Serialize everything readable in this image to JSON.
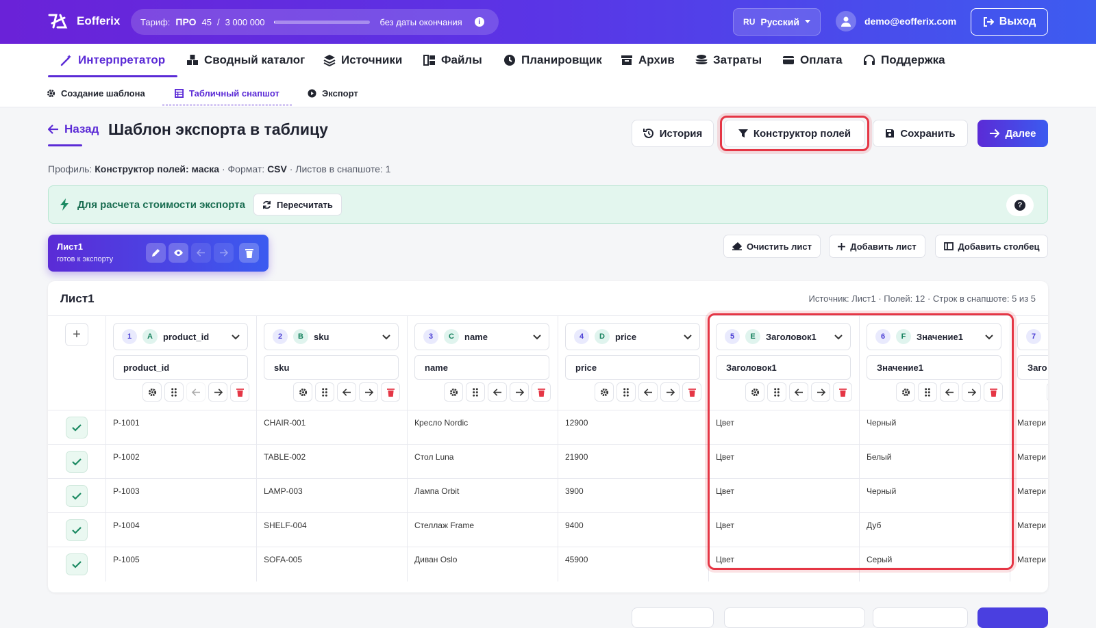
{
  "header": {
    "brand": "Eofferix",
    "tariff": {
      "label": "Тариф:",
      "plan": "ПРО",
      "used": "45",
      "sep": "/",
      "limit": "3 000 000",
      "usage_fraction": 1.5e-05,
      "expiry": "без даты окончания"
    },
    "language": {
      "code": "RU",
      "label": "Русский"
    },
    "user_email": "demo@eofferix.com",
    "logout_label": "Выход"
  },
  "main_tabs": [
    {
      "label": "Интерпретатор",
      "icon": "magic-wand-icon",
      "active": true
    },
    {
      "label": "Сводный каталог",
      "icon": "boxes-icon"
    },
    {
      "label": "Источники",
      "icon": "layers-icon"
    },
    {
      "label": "Файлы",
      "icon": "files-icon"
    },
    {
      "label": "Планировщик",
      "icon": "clock-icon"
    },
    {
      "label": "Архив",
      "icon": "archive-icon"
    },
    {
      "label": "Затраты",
      "icon": "coins-icon"
    },
    {
      "label": "Оплата",
      "icon": "credit-card-icon"
    },
    {
      "label": "Поддержка",
      "icon": "headset-icon"
    }
  ],
  "sub_tabs": [
    {
      "label": "Создание шаблона",
      "icon": "gear-icon"
    },
    {
      "label": "Табличный снапшот",
      "icon": "table-icon",
      "active": true
    },
    {
      "label": "Экспорт",
      "icon": "play-icon"
    }
  ],
  "page": {
    "back_label": "Назад",
    "title": "Шаблон экспорта в таблицу",
    "history_label": "История",
    "constructor_label": "Конструктор полей",
    "save_label": "Сохранить",
    "next_label": "Далее",
    "profile": {
      "p1": "Профиль:",
      "name": "Конструктор полей: маска",
      "p2": "· Формат:",
      "format": "CSV",
      "p3": "· Листов в снапшоте: 1"
    }
  },
  "notice": {
    "text": "Для расчета стоимости экспорта",
    "recalc_label": "Пересчитать",
    "help": "?"
  },
  "sheet_tab": {
    "name": "Лист1",
    "status": "готов к экспорту"
  },
  "sheet_actions": {
    "clear_label": "Очистить лист",
    "add_sheet_label": "Добавить лист",
    "add_column_label": "Добавить столбец"
  },
  "table": {
    "title": "Лист1",
    "meta": "Источник: Лист1 · Полей: 12 · Строк в снапшоте: 5 из 5",
    "add_symbol": "+",
    "columns": [
      {
        "num": "1",
        "letter": "A",
        "select": "product_id",
        "field": "product_id"
      },
      {
        "num": "2",
        "letter": "B",
        "select": "sku",
        "field": "sku"
      },
      {
        "num": "3",
        "letter": "C",
        "select": "name",
        "field": "name"
      },
      {
        "num": "4",
        "letter": "D",
        "select": "price",
        "field": "price"
      },
      {
        "num": "5",
        "letter": "E",
        "select": "Заголовок1",
        "field": "Заголовок1"
      },
      {
        "num": "6",
        "letter": "F",
        "select": "Значение1",
        "field": "Значение1"
      },
      {
        "num": "7",
        "letter": "",
        "select": "",
        "field": "Заго"
      }
    ],
    "rows": [
      [
        "P-1001",
        "CHAIR-001",
        "Кресло Nordic",
        "12900",
        "Цвет",
        "Черный",
        "Матери"
      ],
      [
        "P-1002",
        "TABLE-002",
        "Стол Luna",
        "21900",
        "Цвет",
        "Белый",
        "Матери"
      ],
      [
        "P-1003",
        "LAMP-003",
        "Лампа Orbit",
        "3900",
        "Цвет",
        "Черный",
        "Матери"
      ],
      [
        "P-1004",
        "SHELF-004",
        "Стеллаж Frame",
        "9400",
        "Цвет",
        "Дуб",
        "Матери"
      ],
      [
        "P-1005",
        "SOFA-005",
        "Диван Oslo",
        "45900",
        "Цвет",
        "Серый",
        "Матери"
      ]
    ]
  },
  "colors": {
    "accent": "#5b2bd6",
    "highlight": "#e53645",
    "success": "#1b6e52"
  }
}
